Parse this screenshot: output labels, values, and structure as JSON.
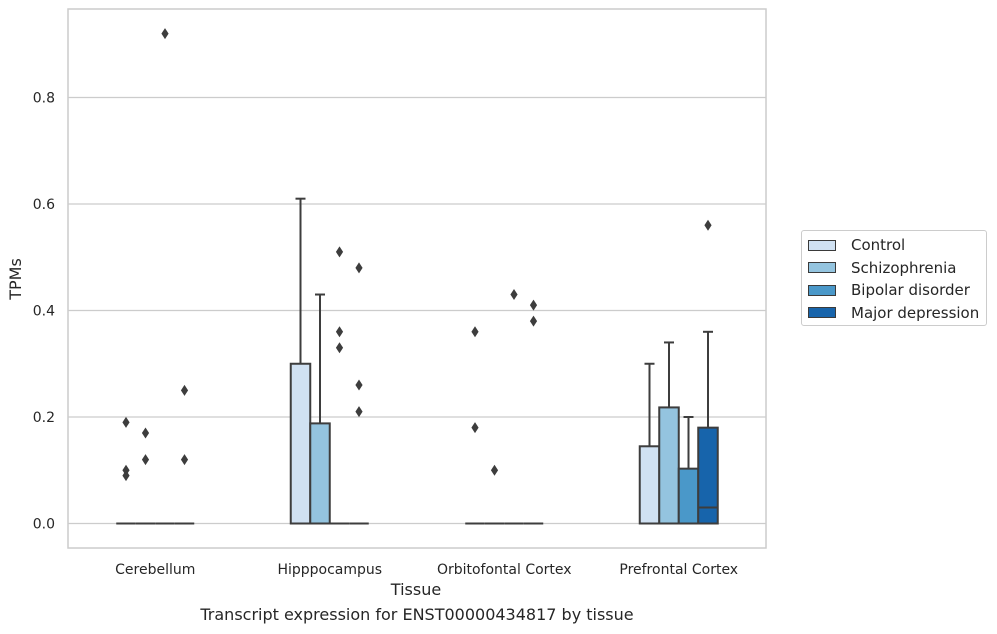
{
  "caption": "Transcript expression for ENST00000434817 by tissue",
  "chart_data": {
    "type": "box",
    "title": "",
    "xlabel": "Tissue",
    "ylabel": "TPMs",
    "ylim": [
      -0.045,
      0.97
    ],
    "yticks": [
      0.0,
      0.2,
      0.4,
      0.6,
      0.8
    ],
    "ytick_labels": [
      "0.0",
      "0.2",
      "0.4",
      "0.6",
      "0.8"
    ],
    "grid": "horizontal",
    "legend_position": "right",
    "categories": [
      "Cerebellum",
      "Hipppocampus",
      "Orbitofontal Cortex",
      "Prefrontal Cortex"
    ],
    "series": [
      {
        "name": "Control",
        "color": "#d0e1f2",
        "boxes": [
          {
            "min": 0,
            "q1": 0,
            "median": 0,
            "q3": 0,
            "max": 0,
            "outliers": [
              0.19,
              0.1,
              0.09
            ]
          },
          {
            "min": 0,
            "q1": 0,
            "median": 0,
            "q3": 0.3,
            "max": 0.61,
            "outliers": []
          },
          {
            "min": 0,
            "q1": 0,
            "median": 0,
            "q3": 0,
            "max": 0,
            "outliers": [
              0.36,
              0.18
            ]
          },
          {
            "min": 0,
            "q1": 0,
            "median": 0,
            "q3": 0.145,
            "max": 0.3,
            "outliers": []
          }
        ]
      },
      {
        "name": "Schizophrenia",
        "color": "#94c4df",
        "boxes": [
          {
            "min": 0,
            "q1": 0,
            "median": 0,
            "q3": 0,
            "max": 0,
            "outliers": [
              0.17,
              0.12
            ]
          },
          {
            "min": 0,
            "q1": 0,
            "median": 0,
            "q3": 0.188,
            "max": 0.43,
            "outliers": []
          },
          {
            "min": 0,
            "q1": 0,
            "median": 0,
            "q3": 0,
            "max": 0,
            "outliers": [
              0.1
            ]
          },
          {
            "min": 0,
            "q1": 0,
            "median": 0,
            "q3": 0.218,
            "max": 0.34,
            "outliers": []
          }
        ]
      },
      {
        "name": "Bipolar disorder",
        "color": "#4a98c9",
        "boxes": [
          {
            "min": 0,
            "q1": 0,
            "median": 0,
            "q3": 0,
            "max": 0,
            "outliers": [
              0.92
            ]
          },
          {
            "min": 0,
            "q1": 0,
            "median": 0,
            "q3": 0,
            "max": 0,
            "outliers": [
              0.51,
              0.36,
              0.33
            ]
          },
          {
            "min": 0,
            "q1": 0,
            "median": 0,
            "q3": 0,
            "max": 0,
            "outliers": [
              0.43
            ]
          },
          {
            "min": 0,
            "q1": 0,
            "median": 0,
            "q3": 0.103,
            "max": 0.2,
            "outliers": []
          }
        ]
      },
      {
        "name": "Major depression",
        "color": "#1764ab",
        "boxes": [
          {
            "min": 0,
            "q1": 0,
            "median": 0,
            "q3": 0,
            "max": 0,
            "outliers": [
              0.25,
              0.12
            ]
          },
          {
            "min": 0,
            "q1": 0,
            "median": 0,
            "q3": 0,
            "max": 0,
            "outliers": [
              0.48,
              0.26,
              0.21
            ]
          },
          {
            "min": 0,
            "q1": 0,
            "median": 0,
            "q3": 0,
            "max": 0,
            "outliers": [
              0.41,
              0.38
            ]
          },
          {
            "min": 0,
            "q1": 0,
            "median": 0.03,
            "q3": 0.18,
            "max": 0.36,
            "outliers": [
              0.56
            ]
          }
        ]
      }
    ]
  }
}
